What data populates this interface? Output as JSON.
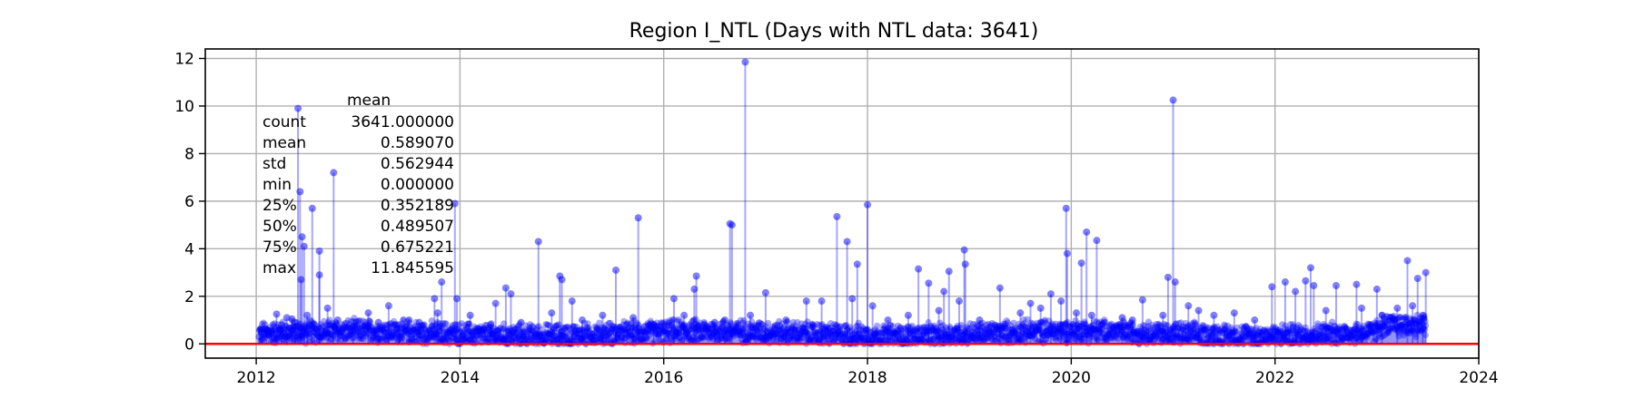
{
  "chart_data": {
    "type": "scatter",
    "title": "Region I_NTL (Days with NTL data: 3641)",
    "xlabel": "",
    "ylabel": "",
    "xlim": [
      2011.5,
      2024.0
    ],
    "ylim": [
      -0.6,
      12.4
    ],
    "x_ticks": [
      2012,
      2014,
      2016,
      2018,
      2020,
      2022,
      2024
    ],
    "y_ticks": [
      0,
      2,
      4,
      6,
      8,
      10,
      12
    ],
    "grid": true,
    "series": [
      {
        "style": "stem-markers",
        "color": "#0000ff",
        "baseline": 0,
        "baseline_color": "#ff0000",
        "points": [
          [
            2012.03,
            0.3
          ],
          [
            2012.05,
            0.45
          ],
          [
            2012.1,
            0.6
          ],
          [
            2012.15,
            0.5
          ],
          [
            2012.2,
            1.25
          ],
          [
            2012.25,
            0.8
          ],
          [
            2012.3,
            1.1
          ],
          [
            2012.35,
            1.05
          ],
          [
            2012.38,
            0.9
          ],
          [
            2012.41,
            9.9
          ],
          [
            2012.43,
            6.4
          ],
          [
            2012.45,
            4.5
          ],
          [
            2012.47,
            4.1
          ],
          [
            2012.44,
            2.7
          ],
          [
            2012.5,
            1.2
          ],
          [
            2012.55,
            5.7
          ],
          [
            2012.62,
            3.9
          ],
          [
            2012.62,
            2.9
          ],
          [
            2012.7,
            1.5
          ],
          [
            2012.76,
            7.2
          ],
          [
            2012.8,
            1.0
          ],
          [
            2012.95,
            0.7
          ],
          [
            2013.1,
            1.3
          ],
          [
            2013.2,
            0.9
          ],
          [
            2013.3,
            1.6
          ],
          [
            2013.4,
            0.8
          ],
          [
            2013.5,
            1.0
          ],
          [
            2013.6,
            0.9
          ],
          [
            2013.75,
            1.9
          ],
          [
            2013.78,
            1.3
          ],
          [
            2013.82,
            2.6
          ],
          [
            2013.95,
            5.9
          ],
          [
            2013.97,
            1.9
          ],
          [
            2014.1,
            1.2
          ],
          [
            2014.3,
            0.8
          ],
          [
            2014.35,
            1.7
          ],
          [
            2014.45,
            2.35
          ],
          [
            2014.5,
            2.1
          ],
          [
            2014.6,
            0.9
          ],
          [
            2014.77,
            4.3
          ],
          [
            2014.9,
            1.3
          ],
          [
            2014.98,
            2.85
          ],
          [
            2015.0,
            2.7
          ],
          [
            2015.1,
            1.8
          ],
          [
            2015.2,
            1.0
          ],
          [
            2015.4,
            1.2
          ],
          [
            2015.53,
            3.1
          ],
          [
            2015.7,
            1.1
          ],
          [
            2015.75,
            5.3
          ],
          [
            2015.9,
            0.8
          ],
          [
            2016.1,
            1.9
          ],
          [
            2016.2,
            1.2
          ],
          [
            2016.3,
            2.3
          ],
          [
            2016.32,
            2.85
          ],
          [
            2016.5,
            0.9
          ],
          [
            2016.6,
            1.0
          ],
          [
            2016.65,
            5.05
          ],
          [
            2016.67,
            5.0
          ],
          [
            2016.8,
            11.85
          ],
          [
            2016.85,
            1.2
          ],
          [
            2017.0,
            2.15
          ],
          [
            2017.2,
            1.0
          ],
          [
            2017.4,
            1.8
          ],
          [
            2017.55,
            1.8
          ],
          [
            2017.7,
            5.35
          ],
          [
            2017.8,
            4.3
          ],
          [
            2017.85,
            1.9
          ],
          [
            2017.9,
            3.35
          ],
          [
            2018.0,
            5.85
          ],
          [
            2018.05,
            1.6
          ],
          [
            2018.2,
            1.0
          ],
          [
            2018.4,
            1.2
          ],
          [
            2018.5,
            3.15
          ],
          [
            2018.6,
            2.55
          ],
          [
            2018.7,
            1.4
          ],
          [
            2018.75,
            2.2
          ],
          [
            2018.8,
            3.05
          ],
          [
            2018.9,
            1.8
          ],
          [
            2018.95,
            3.95
          ],
          [
            2018.96,
            3.35
          ],
          [
            2019.1,
            1.0
          ],
          [
            2019.3,
            2.35
          ],
          [
            2019.5,
            1.3
          ],
          [
            2019.6,
            1.7
          ],
          [
            2019.7,
            1.5
          ],
          [
            2019.8,
            2.1
          ],
          [
            2019.9,
            1.8
          ],
          [
            2019.95,
            5.7
          ],
          [
            2019.96,
            3.8
          ],
          [
            2020.05,
            1.3
          ],
          [
            2020.1,
            3.4
          ],
          [
            2020.15,
            4.7
          ],
          [
            2020.2,
            1.2
          ],
          [
            2020.25,
            4.35
          ],
          [
            2020.5,
            1.1
          ],
          [
            2020.6,
            1.0
          ],
          [
            2020.7,
            1.85
          ],
          [
            2020.9,
            1.2
          ],
          [
            2020.95,
            2.8
          ],
          [
            2021.0,
            10.25
          ],
          [
            2021.02,
            2.6
          ],
          [
            2021.15,
            1.6
          ],
          [
            2021.25,
            1.4
          ],
          [
            2021.4,
            1.2
          ],
          [
            2021.6,
            1.3
          ],
          [
            2021.8,
            1.0
          ],
          [
            2021.97,
            2.4
          ],
          [
            2022.1,
            2.6
          ],
          [
            2022.2,
            2.2
          ],
          [
            2022.3,
            2.65
          ],
          [
            2022.35,
            3.2
          ],
          [
            2022.38,
            2.45
          ],
          [
            2022.5,
            1.4
          ],
          [
            2022.6,
            2.45
          ],
          [
            2022.8,
            2.5
          ],
          [
            2022.85,
            1.5
          ],
          [
            2023.0,
            2.3
          ],
          [
            2023.05,
            1.2
          ],
          [
            2023.2,
            1.5
          ],
          [
            2023.3,
            3.5
          ],
          [
            2023.35,
            1.6
          ],
          [
            2023.4,
            2.75
          ],
          [
            2023.45,
            1.2
          ],
          [
            2023.48,
            3.0
          ]
        ]
      }
    ],
    "stats_table": {
      "header": "mean",
      "rows": [
        [
          "count",
          "3641.000000"
        ],
        [
          "mean",
          "0.589070"
        ],
        [
          "std",
          "0.562944"
        ],
        [
          "min",
          "0.000000"
        ],
        [
          "25%",
          "0.352189"
        ],
        [
          "50%",
          "0.489507"
        ],
        [
          "75%",
          "0.675221"
        ],
        [
          "max",
          "11.845595"
        ]
      ]
    }
  }
}
